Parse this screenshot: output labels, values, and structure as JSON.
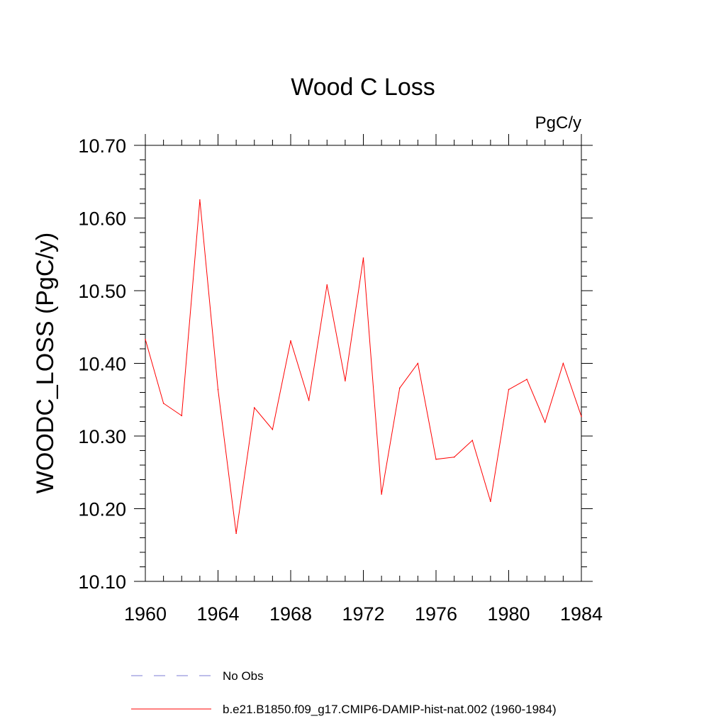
{
  "chart_data": {
    "type": "line",
    "title": "Wood C Loss",
    "units_label": "PgC/y",
    "ylabel": "WOODC_LOSS  (PgC/y)",
    "xlabel": "",
    "xlim": [
      1960,
      1984
    ],
    "ylim": [
      10.1,
      10.7
    ],
    "x_ticks": [
      "1960",
      "1964",
      "1968",
      "1972",
      "1976",
      "1980",
      "1984"
    ],
    "y_ticks": [
      "10.10",
      "10.20",
      "10.30",
      "10.40",
      "10.50",
      "10.60",
      "10.70"
    ],
    "x": [
      1960,
      1961,
      1962,
      1963,
      1964,
      1965,
      1966,
      1967,
      1968,
      1969,
      1970,
      1971,
      1972,
      1973,
      1974,
      1975,
      1976,
      1977,
      1978,
      1979,
      1980,
      1981,
      1982,
      1983,
      1984
    ],
    "series": [
      {
        "name": "b.e21.B1850.f09_g17.CMIP6-DAMIP-hist-nat.002 (1960-1984)",
        "color": "#ff0000",
        "style": "solid",
        "values": [
          10.433,
          10.345,
          10.328,
          10.625,
          10.364,
          10.166,
          10.339,
          10.309,
          10.431,
          10.349,
          10.508,
          10.376,
          10.545,
          10.22,
          10.366,
          10.4,
          10.268,
          10.271,
          10.294,
          10.21,
          10.364,
          10.378,
          10.319,
          10.4,
          10.327
        ]
      }
    ],
    "legend": [
      {
        "label": "No Obs",
        "color": "#7b7bd6",
        "style": "dashed"
      },
      {
        "label": "b.e21.B1850.f09_g17.CMIP6-DAMIP-hist-nat.002 (1960-1984)",
        "color": "#ff0000",
        "style": "solid"
      }
    ],
    "legend_position": "bottom",
    "grid": false
  }
}
